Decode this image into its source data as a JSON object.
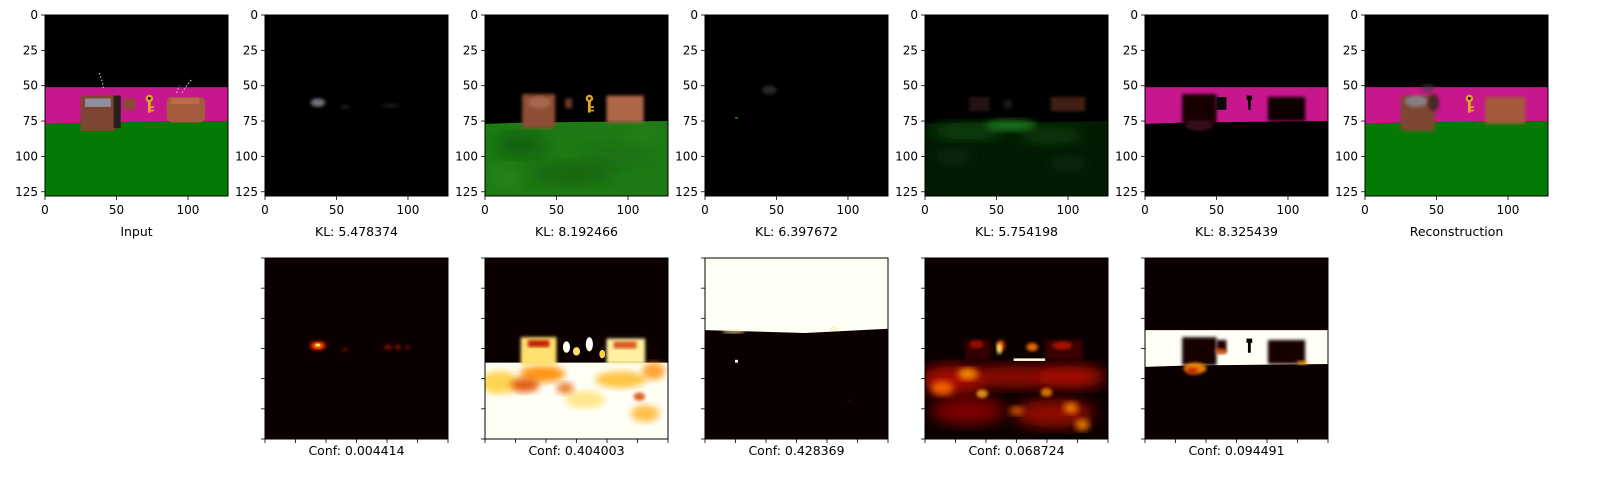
{
  "chart_data": {
    "type": "heatmap",
    "top_row": {
      "x_ticks": [
        "0",
        "50",
        "100"
      ],
      "y_ticks": [
        "0",
        "25",
        "50",
        "75",
        "100",
        "125"
      ],
      "xlim": [
        0,
        128
      ],
      "ylim": [
        128,
        0
      ],
      "panels": [
        {
          "caption": "Input",
          "content": "input"
        },
        {
          "caption": "KL: 5.478374",
          "content": "slot1"
        },
        {
          "caption": "KL: 8.192466",
          "content": "slot2"
        },
        {
          "caption": "KL: 6.397672",
          "content": "slot3"
        },
        {
          "caption": "KL: 5.754198",
          "content": "slot4"
        },
        {
          "caption": "KL: 8.325439",
          "content": "slot5"
        },
        {
          "caption": "Reconstruction",
          "content": "recon"
        }
      ]
    },
    "bottom_row": {
      "colormap": "hot",
      "panels": [
        {
          "caption": "Conf: 0.004414",
          "confidence": 0.004414,
          "content": "mask1"
        },
        {
          "caption": "Conf: 0.404003",
          "confidence": 0.404003,
          "content": "mask2"
        },
        {
          "caption": "Conf: 0.428369",
          "confidence": 0.428369,
          "content": "mask3"
        },
        {
          "caption": "Conf: 0.068724",
          "confidence": 0.068724,
          "content": "mask4"
        },
        {
          "caption": "Conf: 0.094491",
          "confidence": 0.094491,
          "content": "mask5"
        }
      ]
    },
    "scene_colors": {
      "sky": "#000000",
      "wall": "#c8168c",
      "floor": "#047a04",
      "box": "#8a4a32",
      "box_highlight": "#d87a5a",
      "key": "#e0a820",
      "hot_dark": "#0b0000",
      "hot_red": "#c01000",
      "hot_orange": "#ff8c00",
      "hot_yellow": "#ffe866",
      "hot_white": "#fffff6"
    }
  }
}
